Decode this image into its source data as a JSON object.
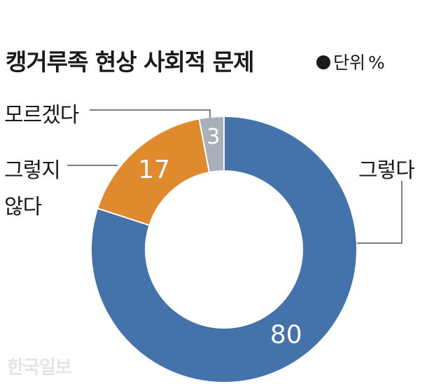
{
  "header": {
    "title": "캥거루족 현상 사회적 문제",
    "unit_label": "단위",
    "unit_symbol": "%"
  },
  "watermark": "한국일보",
  "chart_data": {
    "type": "pie",
    "variant": "donut",
    "title": "캥거루족 현상 사회적 문제",
    "unit": "%",
    "slices": [
      {
        "label": "그렇다",
        "value": 80,
        "color": "#4472aa"
      },
      {
        "label": "그렇지 않다",
        "label_lines": [
          "그렇지",
          "않다"
        ],
        "value": 17,
        "color": "#e08a2e"
      },
      {
        "label": "모르겠다",
        "value": 3,
        "color": "#a8b0ba"
      }
    ],
    "start": "12 o'clock",
    "direction": "clockwise",
    "legend": "callout-labels"
  }
}
